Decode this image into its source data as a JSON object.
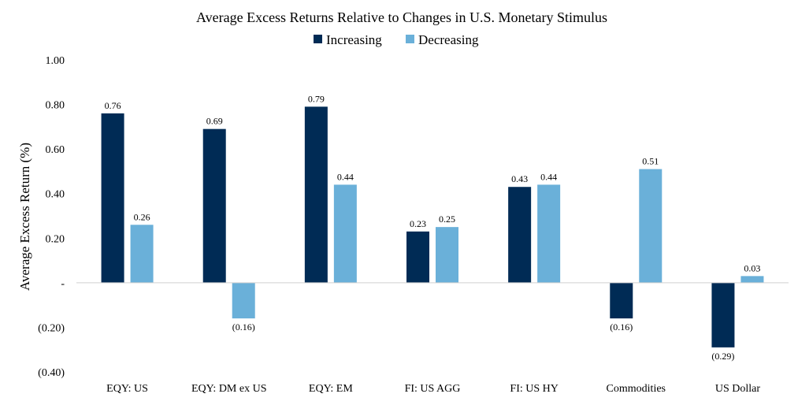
{
  "chart_data": {
    "type": "bar",
    "title": "Average Excess Returns Relative to Changes in U.S. Monetary Stimulus",
    "xlabel": "",
    "ylabel": "Average Excess Return (%)",
    "ylim": [
      -0.4,
      1.0
    ],
    "yticks": [
      1.0,
      0.8,
      0.6,
      0.4,
      0.2,
      0,
      -0.2,
      -0.4
    ],
    "ytick_labels": [
      "1.00",
      "0.80",
      "0.60",
      "0.40",
      "0.20",
      "-",
      "(0.20)",
      "(0.40)"
    ],
    "legend_position": "top-center",
    "grid": false,
    "categories": [
      "EQY: US",
      "EQY: DM ex US",
      "EQY: EM",
      "FI: US AGG",
      "FI: US HY",
      "Commodities",
      "US Dollar"
    ],
    "series": [
      {
        "name": "Increasing",
        "color": "#002b55",
        "values": [
          0.76,
          0.69,
          0.79,
          0.23,
          0.43,
          -0.16,
          -0.29
        ],
        "labels": [
          "0.76",
          "0.69",
          "0.79",
          "0.23",
          "0.43",
          "(0.16)",
          "(0.29)"
        ]
      },
      {
        "name": "Decreasing",
        "color": "#6ab0d9",
        "values": [
          0.26,
          -0.16,
          0.44,
          0.25,
          0.44,
          0.51,
          0.03
        ],
        "labels": [
          "0.26",
          "(0.16)",
          "0.44",
          "0.25",
          "0.44",
          "0.51",
          "0.03"
        ]
      }
    ]
  }
}
